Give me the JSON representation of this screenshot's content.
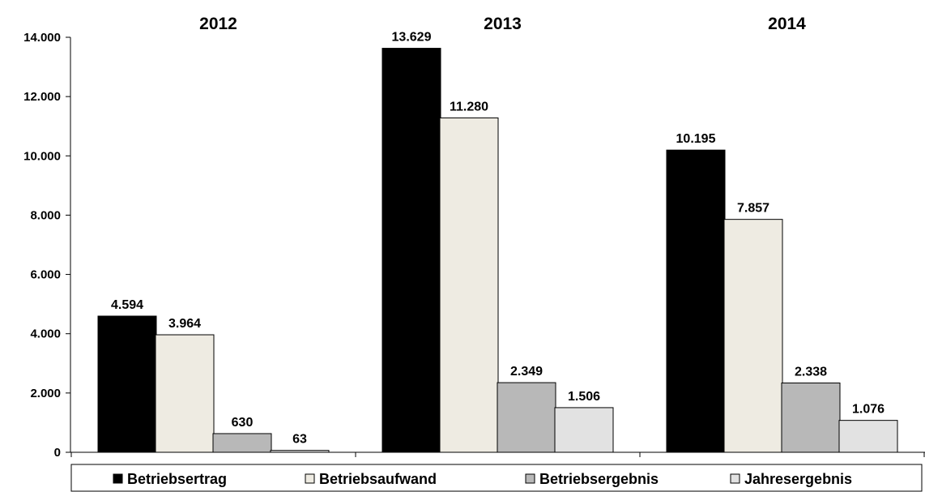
{
  "chart_data": {
    "type": "bar",
    "categories": [
      "2012",
      "2013",
      "2014"
    ],
    "series": [
      {
        "name": "Betriebsertrag",
        "values": [
          4594,
          13629,
          10195
        ],
        "labels": [
          "4.594",
          "13.629",
          "10.195"
        ],
        "color": "#000000"
      },
      {
        "name": "Betriebsaufwand",
        "values": [
          3964,
          11280,
          7857
        ],
        "labels": [
          "3.964",
          "11.280",
          "7.857"
        ],
        "color": "#eeebe2"
      },
      {
        "name": "Betriebsergebnis",
        "values": [
          630,
          2349,
          2338
        ],
        "labels": [
          "630",
          "2.349",
          "2.338"
        ],
        "color": "#b8b8b8"
      },
      {
        "name": "Jahresergebnis",
        "values": [
          63,
          1506,
          1076
        ],
        "labels": [
          "63",
          "1.506",
          "1.076"
        ],
        "color": "#e2e2e2"
      }
    ],
    "y_ticks": [
      0,
      2000,
      4000,
      6000,
      8000,
      10000,
      12000,
      14000
    ],
    "y_tick_labels": [
      "0",
      "2.000",
      "4.000",
      "6.000",
      "8.000",
      "10.000",
      "12.000",
      "14.000"
    ],
    "ylim": [
      0,
      14000
    ],
    "grid": false,
    "legend_position": "bottom"
  }
}
